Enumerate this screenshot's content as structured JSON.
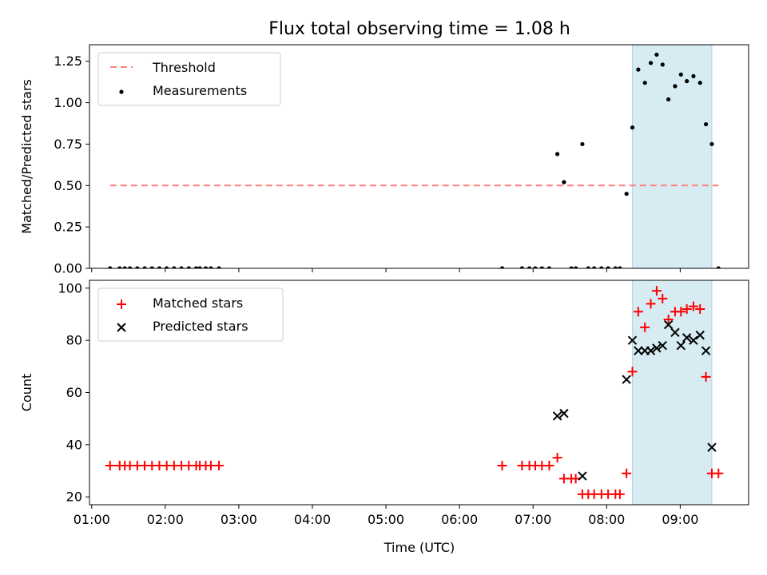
{
  "chart_data": {
    "title": "Flux total observing time = 1.08 h",
    "xlabel": "Time (UTC)",
    "x_unit": "hours (UTC)",
    "xlim": [
      0.97,
      9.93
    ],
    "xticks": [
      {
        "value": 1,
        "label": "01:00"
      },
      {
        "value": 2,
        "label": "02:00"
      },
      {
        "value": 3,
        "label": "03:00"
      },
      {
        "value": 4,
        "label": "04:00"
      },
      {
        "value": 5,
        "label": "05:00"
      },
      {
        "value": 6,
        "label": "06:00"
      },
      {
        "value": 7,
        "label": "07:00"
      },
      {
        "value": 8,
        "label": "08:00"
      },
      {
        "value": 9,
        "label": "09:00"
      }
    ],
    "highlight_span": {
      "x_start": 8.35,
      "x_end": 9.43,
      "color": "#add8e6"
    },
    "panels": [
      {
        "type": "scatter",
        "ylabel": "Matched/Predicted stars",
        "ylim": [
          0,
          1.35
        ],
        "yticks": [
          "0.00",
          "0.25",
          "0.50",
          "0.75",
          "1.00",
          "1.25"
        ],
        "yticks_values": [
          0,
          0.25,
          0.5,
          0.75,
          1.0,
          1.25
        ],
        "legend": {
          "position": "upper-left",
          "entries": [
            "Threshold",
            "Measurements"
          ]
        },
        "threshold": {
          "name": "Threshold",
          "y": 0.5,
          "x_start": 1.25,
          "x_end": 9.52,
          "color": "#ff7f7f"
        },
        "series": [
          {
            "name": "Measurements",
            "marker": "dot",
            "color": "#000000",
            "points": [
              [
                1.25,
                0
              ],
              [
                1.38,
                0
              ],
              [
                1.45,
                0
              ],
              [
                1.52,
                0
              ],
              [
                1.62,
                0
              ],
              [
                1.72,
                0
              ],
              [
                1.82,
                0
              ],
              [
                1.92,
                0
              ],
              [
                2.02,
                0
              ],
              [
                2.12,
                0
              ],
              [
                2.22,
                0
              ],
              [
                2.32,
                0
              ],
              [
                2.42,
                0
              ],
              [
                2.47,
                0
              ],
              [
                2.55,
                0
              ],
              [
                2.62,
                0
              ],
              [
                2.73,
                0
              ],
              [
                6.58,
                0
              ],
              [
                6.85,
                0
              ],
              [
                6.95,
                0
              ],
              [
                7.03,
                0
              ],
              [
                7.12,
                0
              ],
              [
                7.22,
                0
              ],
              [
                7.33,
                0.69
              ],
              [
                7.42,
                0.52
              ],
              [
                7.52,
                0
              ],
              [
                7.58,
                0
              ],
              [
                7.67,
                0.75
              ],
              [
                7.75,
                0
              ],
              [
                7.83,
                0
              ],
              [
                7.93,
                0
              ],
              [
                8.02,
                0
              ],
              [
                8.12,
                0
              ],
              [
                8.18,
                0
              ],
              [
                8.27,
                0.45
              ],
              [
                8.35,
                0.85
              ],
              [
                8.43,
                1.2
              ],
              [
                8.52,
                1.12
              ],
              [
                8.6,
                1.24
              ],
              [
                8.68,
                1.29
              ],
              [
                8.76,
                1.23
              ],
              [
                8.84,
                1.02
              ],
              [
                8.93,
                1.1
              ],
              [
                9.01,
                1.17
              ],
              [
                9.09,
                1.13
              ],
              [
                9.18,
                1.16
              ],
              [
                9.27,
                1.12
              ],
              [
                9.35,
                0.87
              ],
              [
                9.43,
                0.75
              ],
              [
                9.52,
                0
              ]
            ]
          }
        ]
      },
      {
        "type": "scatter",
        "ylabel": "Count",
        "ylim": [
          17,
          103
        ],
        "yticks": [
          "20",
          "40",
          "60",
          "80",
          "100"
        ],
        "yticks_values": [
          20,
          40,
          60,
          80,
          100
        ],
        "legend": {
          "position": "upper-left",
          "entries": [
            "Matched stars",
            "Predicted stars"
          ]
        },
        "series": [
          {
            "name": "Matched stars",
            "marker": "plus",
            "color": "#ff0000",
            "points": [
              [
                1.25,
                32
              ],
              [
                1.38,
                32
              ],
              [
                1.45,
                32
              ],
              [
                1.52,
                32
              ],
              [
                1.62,
                32
              ],
              [
                1.72,
                32
              ],
              [
                1.82,
                32
              ],
              [
                1.92,
                32
              ],
              [
                2.02,
                32
              ],
              [
                2.12,
                32
              ],
              [
                2.22,
                32
              ],
              [
                2.32,
                32
              ],
              [
                2.42,
                32
              ],
              [
                2.47,
                32
              ],
              [
                2.55,
                32
              ],
              [
                2.62,
                32
              ],
              [
                2.73,
                32
              ],
              [
                6.58,
                32
              ],
              [
                6.85,
                32
              ],
              [
                6.95,
                32
              ],
              [
                7.03,
                32
              ],
              [
                7.12,
                32
              ],
              [
                7.22,
                32
              ],
              [
                7.33,
                35
              ],
              [
                7.42,
                27
              ],
              [
                7.52,
                27
              ],
              [
                7.58,
                27
              ],
              [
                7.67,
                21
              ],
              [
                7.75,
                21
              ],
              [
                7.83,
                21
              ],
              [
                7.93,
                21
              ],
              [
                8.02,
                21
              ],
              [
                8.12,
                21
              ],
              [
                8.18,
                21
              ],
              [
                8.27,
                29
              ],
              [
                8.35,
                68
              ],
              [
                8.43,
                91
              ],
              [
                8.52,
                85
              ],
              [
                8.6,
                94
              ],
              [
                8.68,
                99
              ],
              [
                8.76,
                96
              ],
              [
                8.84,
                88
              ],
              [
                8.93,
                91
              ],
              [
                9.01,
                91
              ],
              [
                9.09,
                92
              ],
              [
                9.18,
                93
              ],
              [
                9.27,
                92
              ],
              [
                9.35,
                66
              ],
              [
                9.43,
                29
              ],
              [
                9.52,
                29
              ]
            ]
          },
          {
            "name": "Predicted stars",
            "marker": "x",
            "color": "#000000",
            "points": [
              [
                7.33,
                51
              ],
              [
                7.42,
                52
              ],
              [
                7.67,
                28
              ],
              [
                8.27,
                65
              ],
              [
                8.35,
                80
              ],
              [
                8.43,
                76
              ],
              [
                8.52,
                76
              ],
              [
                8.6,
                76
              ],
              [
                8.68,
                77
              ],
              [
                8.76,
                78
              ],
              [
                8.84,
                86
              ],
              [
                8.93,
                83
              ],
              [
                9.01,
                78
              ],
              [
                9.09,
                81
              ],
              [
                9.18,
                80
              ],
              [
                9.27,
                82
              ],
              [
                9.35,
                76
              ],
              [
                9.43,
                39
              ]
            ]
          }
        ]
      }
    ]
  }
}
